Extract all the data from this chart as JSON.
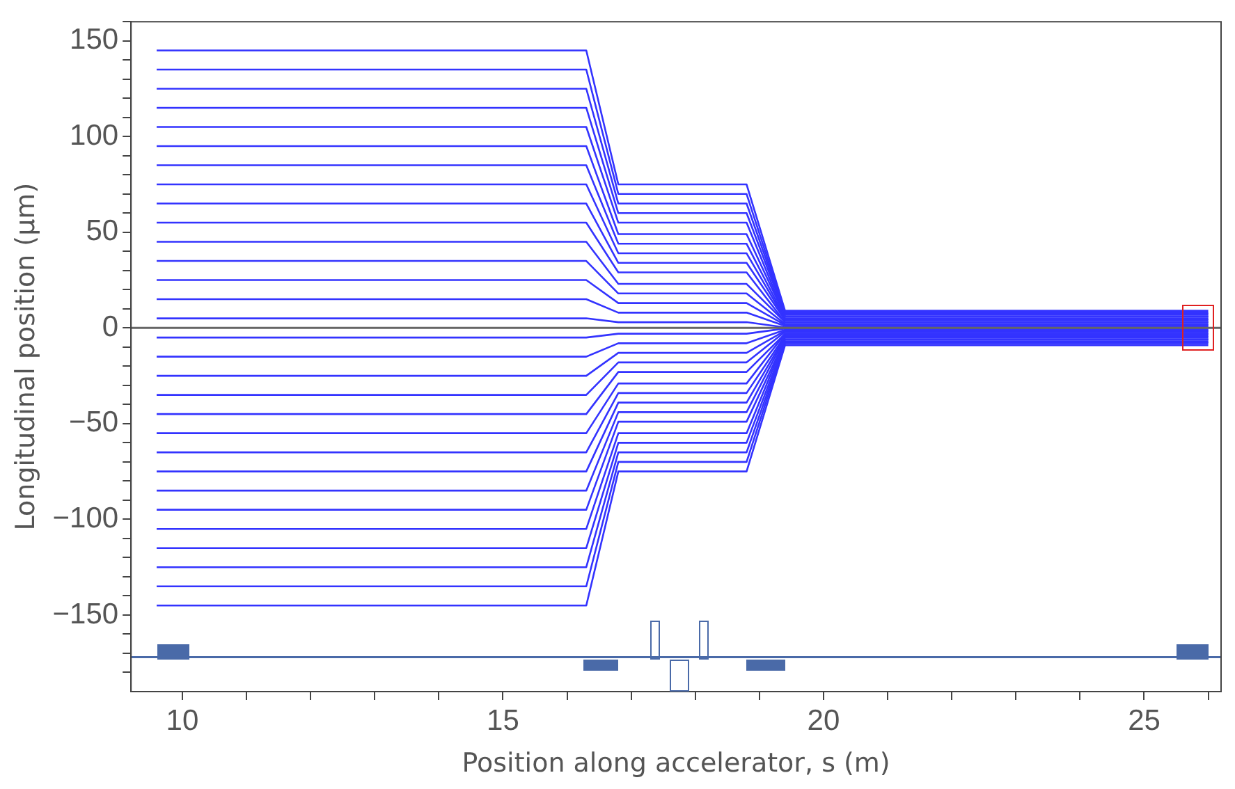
{
  "chart_data": {
    "type": "line",
    "xlabel": "Position along accelerator, s (m)",
    "ylabel": "Longitudinal position (μm)",
    "x": [
      9.6,
      16.3,
      16.8,
      18.8,
      19.4,
      26.0
    ],
    "xlim": [
      9.2,
      26.2
    ],
    "xticks": [
      10,
      {
        "value": 11,
        "label": null
      },
      {
        "value": 12,
        "label": null
      },
      {
        "value": 13,
        "label": null
      },
      {
        "value": 14,
        "label": null
      },
      15,
      {
        "value": 16,
        "label": null
      },
      {
        "value": 17,
        "label": null
      },
      {
        "value": 18,
        "label": null
      },
      {
        "value": 19,
        "label": null
      },
      20,
      {
        "value": 21,
        "label": null
      },
      {
        "value": 22,
        "label": null
      },
      {
        "value": 23,
        "label": null
      },
      {
        "value": 24,
        "label": null
      },
      25,
      {
        "value": 26,
        "label": null
      }
    ],
    "ylim": [
      -190,
      160
    ],
    "yticks": [
      {
        "value": -180,
        "label": null
      },
      {
        "value": -170,
        "label": null
      },
      {
        "value": -160,
        "label": null
      },
      -150,
      {
        "value": -140,
        "label": null
      },
      {
        "value": -130,
        "label": null
      },
      {
        "value": -120,
        "label": null
      },
      {
        "value": -110,
        "label": null
      },
      -100,
      {
        "value": -90,
        "label": null
      },
      {
        "value": -80,
        "label": null
      },
      {
        "value": -70,
        "label": null
      },
      {
        "value": -60,
        "label": null
      },
      -50,
      {
        "value": -40,
        "label": null
      },
      {
        "value": -30,
        "label": null
      },
      {
        "value": -20,
        "label": null
      },
      {
        "value": -10,
        "label": null
      },
      0,
      {
        "value": 10,
        "label": null
      },
      {
        "value": 20,
        "label": null
      },
      {
        "value": 30,
        "label": null
      },
      {
        "value": 40,
        "label": null
      },
      50,
      {
        "value": 60,
        "label": null
      },
      {
        "value": 70,
        "label": null
      },
      {
        "value": 80,
        "label": null
      },
      {
        "value": 90,
        "label": null
      },
      100,
      {
        "value": 110,
        "label": null
      },
      {
        "value": 120,
        "label": null
      },
      {
        "value": 130,
        "label": null
      },
      {
        "value": 140,
        "label": null
      },
      150,
      {
        "value": 160,
        "label": null
      }
    ],
    "grid": false,
    "legend": false,
    "marker": "none",
    "ref_lines": [
      {
        "axis": "y",
        "value": 0,
        "color": "#666666"
      },
      {
        "axis": "y",
        "value": -172,
        "color": "#4a6aa8"
      }
    ],
    "series": [
      {
        "color": "#3333ff",
        "values": [
          145,
          145,
          75,
          75,
          9,
          9
        ]
      },
      {
        "color": "#3333ff",
        "values": [
          135,
          135,
          70,
          70,
          8,
          8
        ]
      },
      {
        "color": "#3333ff",
        "values": [
          125,
          125,
          65,
          65,
          7.5,
          7.5
        ]
      },
      {
        "color": "#3333ff",
        "values": [
          115,
          115,
          60,
          60,
          7,
          7
        ]
      },
      {
        "color": "#3333ff",
        "values": [
          105,
          105,
          55,
          55,
          6,
          6
        ]
      },
      {
        "color": "#3333ff",
        "values": [
          95,
          95,
          49,
          49,
          6,
          6
        ]
      },
      {
        "color": "#3333ff",
        "values": [
          85,
          85,
          44,
          44,
          5,
          5
        ]
      },
      {
        "color": "#3333ff",
        "values": [
          75,
          75,
          39,
          39,
          4.5,
          4.5
        ]
      },
      {
        "color": "#3333ff",
        "values": [
          65,
          65,
          34,
          34,
          4,
          4
        ]
      },
      {
        "color": "#3333ff",
        "values": [
          55,
          55,
          29,
          29,
          3,
          3
        ]
      },
      {
        "color": "#3333ff",
        "values": [
          45,
          45,
          23,
          23,
          3,
          3
        ]
      },
      {
        "color": "#3333ff",
        "values": [
          35,
          35,
          18,
          18,
          2,
          2
        ]
      },
      {
        "color": "#3333ff",
        "values": [
          25,
          25,
          13,
          13,
          1.5,
          1.5
        ]
      },
      {
        "color": "#3333ff",
        "values": [
          15,
          15,
          8,
          8,
          1,
          1
        ]
      },
      {
        "color": "#3333ff",
        "values": [
          5,
          5,
          3,
          3,
          0.3,
          0.3
        ]
      },
      {
        "color": "#3333ff",
        "values": [
          -5,
          -5,
          -3,
          -3,
          -0.3,
          -0.3
        ]
      },
      {
        "color": "#3333ff",
        "values": [
          -15,
          -15,
          -8,
          -8,
          -1,
          -1
        ]
      },
      {
        "color": "#3333ff",
        "values": [
          -25,
          -25,
          -13,
          -13,
          -1.5,
          -1.5
        ]
      },
      {
        "color": "#3333ff",
        "values": [
          -35,
          -35,
          -18,
          -18,
          -2,
          -2
        ]
      },
      {
        "color": "#3333ff",
        "values": [
          -45,
          -45,
          -23,
          -23,
          -3,
          -3
        ]
      },
      {
        "color": "#3333ff",
        "values": [
          -55,
          -55,
          -29,
          -29,
          -3,
          -3
        ]
      },
      {
        "color": "#3333ff",
        "values": [
          -65,
          -65,
          -34,
          -34,
          -4,
          -4
        ]
      },
      {
        "color": "#3333ff",
        "values": [
          -75,
          -75,
          -39,
          -39,
          -4.5,
          -4.5
        ]
      },
      {
        "color": "#3333ff",
        "values": [
          -85,
          -85,
          -44,
          -44,
          -5,
          -5
        ]
      },
      {
        "color": "#3333ff",
        "values": [
          -95,
          -95,
          -49,
          -49,
          -6,
          -6
        ]
      },
      {
        "color": "#3333ff",
        "values": [
          -105,
          -105,
          -55,
          -55,
          -6,
          -6
        ]
      },
      {
        "color": "#3333ff",
        "values": [
          -115,
          -115,
          -60,
          -60,
          -7,
          -7
        ]
      },
      {
        "color": "#3333ff",
        "values": [
          -125,
          -125,
          -65,
          -65,
          -7.5,
          -7.5
        ]
      },
      {
        "color": "#3333ff",
        "values": [
          -135,
          -135,
          -70,
          -70,
          -8,
          -8
        ]
      },
      {
        "color": "#3333ff",
        "values": [
          -145,
          -145,
          -75,
          -75,
          -9,
          -9
        ]
      }
    ]
  }
}
